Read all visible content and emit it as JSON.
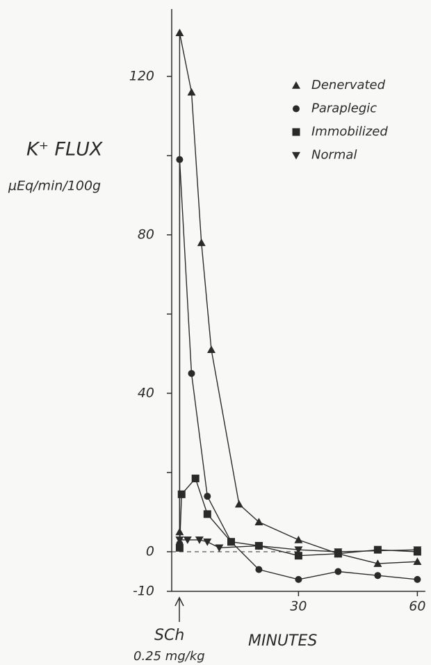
{
  "chart_data": {
    "type": "line",
    "y_label": "K⁺ FLUX",
    "y_unit": "µEq/min/100g",
    "x_label": "MINUTES",
    "annotations": [
      "SCh",
      "0.25 mg/kg"
    ],
    "xlim": [
      -2,
      62
    ],
    "xticks": [
      30,
      60
    ],
    "ylim": [
      -10,
      137
    ],
    "yticks": [
      -10,
      0,
      40,
      80,
      120
    ],
    "minor_yticks": [
      20,
      60,
      100
    ],
    "zero_line": true,
    "series": [
      {
        "name": "Denervated",
        "color": "#2a2a2a",
        "marker": "triangle",
        "x": [
          0,
          0,
          3,
          5.5,
          8,
          15,
          20,
          30,
          40,
          50,
          60
        ],
        "values": [
          5,
          131,
          116,
          78,
          51,
          12,
          7.5,
          3,
          -0.5,
          -3,
          -2.5
        ]
      },
      {
        "name": "Paraplegic",
        "color": "#2a2a2a",
        "marker": "circle",
        "x": [
          0,
          0,
          3,
          7,
          13,
          20,
          30,
          40,
          50,
          60
        ],
        "values": [
          2,
          99,
          45,
          14,
          2.5,
          -4.5,
          -7,
          -5,
          -6,
          -7
        ]
      },
      {
        "name": "Immobilized",
        "color": "#2a2a2a",
        "marker": "square",
        "x": [
          0,
          0.5,
          4,
          7,
          13,
          20,
          30,
          40,
          50,
          60
        ],
        "values": [
          1,
          14.5,
          18.5,
          9.5,
          2.5,
          1.5,
          -1,
          -0.5,
          0.5,
          0
        ]
      },
      {
        "name": "Normal",
        "color": "#2a2a2a",
        "marker": "triangle-down",
        "x": [
          0,
          2,
          5,
          7,
          10,
          20,
          30,
          40,
          60
        ],
        "values": [
          3,
          3,
          3,
          2.5,
          1,
          1.5,
          0.5,
          0,
          0.5
        ]
      }
    ]
  }
}
